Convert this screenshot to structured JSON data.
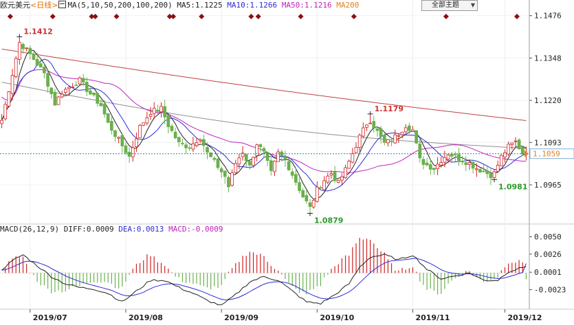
{
  "header": {
    "symbol": "欧元美元",
    "period": "<日线>",
    "ma_params": "MA(5,10,50,200,100,200)",
    "ma5": "MA5:1.1225",
    "ma10": "MA10:1.1266",
    "ma50": "MA50:1.1216",
    "ma200": "MA200",
    "theme_button": "全部主题"
  },
  "macd_header": {
    "params": "MACD(26,12,9)",
    "diff": "DIFF:0.0009",
    "dea": "DEA:0.0013",
    "macd": "MACD:-0.0009"
  },
  "colors": {
    "up": "#d02020",
    "down": "#6ab04c",
    "ma5": "#202020",
    "ma10": "#2a2ad8",
    "ma50": "#c020c0",
    "ma200": "#c04040",
    "ma100": "#909090",
    "marker": "#8b1010",
    "price_tag": "#e08020",
    "current_line": "#2080a0"
  },
  "chart_data": {
    "type": "candlestick",
    "price_axis": {
      "ticks": [
        1.1476,
        1.1348,
        1.122,
        1.1093,
        1.0965
      ],
      "range": [
        1.0855,
        1.149
      ]
    },
    "macd_axis": {
      "ticks": [
        0.005,
        0.0026,
        0.0001,
        -0.0023
      ],
      "range": [
        -0.0048,
        0.0058
      ]
    },
    "date_labels": [
      "2019/07",
      "2019/08",
      "2019/09",
      "2019/10",
      "2019/11",
      "2019/12"
    ],
    "date_label_bar_index": [
      8,
      35,
      62,
      89,
      116,
      142
    ],
    "annotations": [
      {
        "label": "1.1412",
        "value": 1.1412,
        "bar": 5,
        "type": "high"
      },
      {
        "label": "1.1179",
        "value": 1.1179,
        "bar": 104,
        "type": "high"
      },
      {
        "label": "1.0879",
        "value": 1.0879,
        "bar": 87,
        "type": "low"
      },
      {
        "label": "1.0981",
        "value": 1.0981,
        "bar": 139,
        "type": "low"
      }
    ],
    "current_price": {
      "label": "1.1059",
      "value": 1.1059
    },
    "event_marker_bars": [
      2,
      14,
      25,
      26,
      32,
      47,
      48,
      56,
      70,
      72,
      84,
      99,
      125,
      145
    ],
    "close_anchors": [
      [
        0,
        1.116
      ],
      [
        3,
        1.13
      ],
      [
        5,
        1.1395
      ],
      [
        8,
        1.136
      ],
      [
        12,
        1.13
      ],
      [
        15,
        1.121
      ],
      [
        17,
        1.1245
      ],
      [
        19,
        1.126
      ],
      [
        22,
        1.128
      ],
      [
        25,
        1.124
      ],
      [
        28,
        1.1205
      ],
      [
        30,
        1.115
      ],
      [
        33,
        1.11
      ],
      [
        36,
        1.105
      ],
      [
        39,
        1.114
      ],
      [
        42,
        1.1185
      ],
      [
        45,
        1.1195
      ],
      [
        47,
        1.1145
      ],
      [
        50,
        1.109
      ],
      [
        53,
        1.108
      ],
      [
        56,
        1.111
      ],
      [
        58,
        1.106
      ],
      [
        61,
        1.102
      ],
      [
        63,
        1.099
      ],
      [
        64,
        1.096
      ],
      [
        66,
        1.103
      ],
      [
        68,
        1.1065
      ],
      [
        70,
        1.102
      ],
      [
        72,
        1.109
      ],
      [
        74,
        1.106
      ],
      [
        76,
        1.1
      ],
      [
        78,
        1.106
      ],
      [
        80,
        1.104
      ],
      [
        83,
        1.0975
      ],
      [
        85,
        1.093
      ],
      [
        87,
        1.0895
      ],
      [
        89,
        1.095
      ],
      [
        91,
        1.098
      ],
      [
        93,
        1.1
      ],
      [
        95,
        1.097
      ],
      [
        97,
        1.101
      ],
      [
        99,
        1.106
      ],
      [
        101,
        1.111
      ],
      [
        103,
        1.115
      ],
      [
        104,
        1.116
      ],
      [
        106,
        1.1125
      ],
      [
        108,
        1.109
      ],
      [
        110,
        1.11
      ],
      [
        112,
        1.112
      ],
      [
        114,
        1.1145
      ],
      [
        116,
        1.113
      ],
      [
        118,
        1.104
      ],
      [
        120,
        1.1025
      ],
      [
        122,
        1.1015
      ],
      [
        124,
        1.104
      ],
      [
        126,
        1.106
      ],
      [
        128,
        1.105
      ],
      [
        130,
        1.104
      ],
      [
        132,
        1.103
      ],
      [
        134,
        1.1015
      ],
      [
        136,
        1.1005
      ],
      [
        138,
        1.0995
      ],
      [
        139,
        1.1
      ],
      [
        141,
        1.105
      ],
      [
        143,
        1.108
      ],
      [
        145,
        1.1095
      ],
      [
        147,
        1.106
      ],
      [
        148,
        1.1059
      ]
    ],
    "macd_anchors": [
      [
        0,
        0.0005
      ],
      [
        4,
        0.002
      ],
      [
        6,
        0.0025
      ],
      [
        10,
        0.001
      ],
      [
        14,
        -0.0005
      ],
      [
        18,
        -0.0015
      ],
      [
        22,
        -0.002
      ],
      [
        26,
        -0.0022
      ],
      [
        30,
        -0.0028
      ],
      [
        34,
        -0.004
      ],
      [
        38,
        -0.0025
      ],
      [
        42,
        -0.001
      ],
      [
        46,
        -0.001
      ],
      [
        50,
        -0.002
      ],
      [
        54,
        -0.0028
      ],
      [
        58,
        -0.0038
      ],
      [
        62,
        -0.0045
      ],
      [
        66,
        -0.003
      ],
      [
        70,
        -0.0012
      ],
      [
        74,
        -0.0005
      ],
      [
        78,
        -0.001
      ],
      [
        82,
        -0.0025
      ],
      [
        86,
        -0.004
      ],
      [
        90,
        -0.0042
      ],
      [
        94,
        -0.003
      ],
      [
        98,
        -0.0015
      ],
      [
        101,
        0.0008
      ],
      [
        104,
        0.0022
      ],
      [
        108,
        0.0025
      ],
      [
        112,
        0.0018
      ],
      [
        116,
        0.0025
      ],
      [
        120,
        0.0005
      ],
      [
        124,
        -0.0008
      ],
      [
        128,
        -0.0004
      ],
      [
        132,
        0.0
      ],
      [
        136,
        -0.001
      ],
      [
        140,
        -0.001
      ],
      [
        143,
        0.0002
      ],
      [
        146,
        0.0006
      ],
      [
        148,
        0.0009
      ]
    ]
  }
}
